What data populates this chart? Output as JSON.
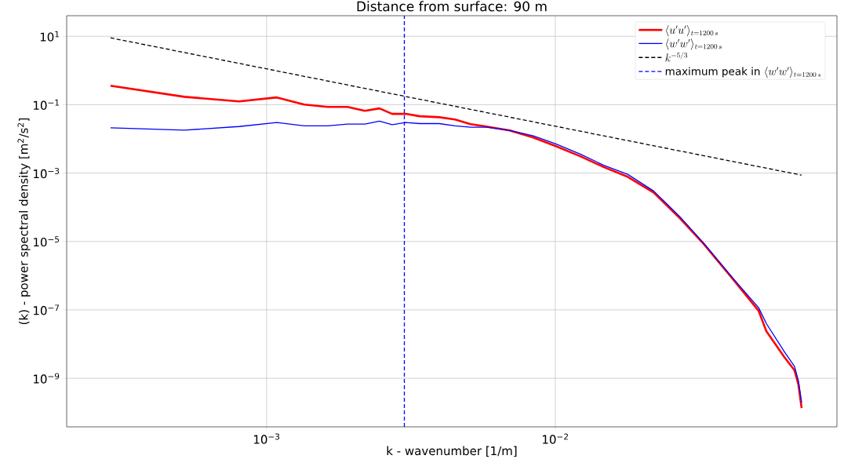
{
  "chart_data": {
    "type": "line",
    "title": "Distance from surface: 90 m",
    "xlabel": "k - wavenumber [1/m]",
    "ylabel": "(k) - power spectral density [m$^{2}$/s$^{2}$]",
    "log": "xy",
    "grid": true,
    "legend": "top right",
    "xlim": [
      0.000203,
      0.0945
    ],
    "ylim": [
      3.8e-11,
      40
    ],
    "xticks": [
      {
        "value": 0.001,
        "label": "10$^{−3}$"
      },
      {
        "value": 0.01,
        "label": "10$^{−2}$"
      }
    ],
    "yticks": [
      {
        "value": 10,
        "label": "10$^{1}$"
      },
      {
        "value": 0.1,
        "label": "10$^{−1}$"
      },
      {
        "value": 0.001,
        "label": "10$^{−3}$"
      },
      {
        "value": 1e-05,
        "label": "10$^{−5}$"
      },
      {
        "value": 1e-07,
        "label": "10$^{−7}$"
      },
      {
        "value": 1e-09,
        "label": "10$^{−9}$"
      }
    ],
    "x": [
      0.000288,
      0.000519,
      0.000803,
      0.001085,
      0.00135,
      0.00163,
      0.001905,
      0.00219,
      0.00246,
      0.00272,
      0.00303,
      0.00339,
      0.00396,
      0.00449,
      0.00509,
      0.00577,
      0.00695,
      0.00839,
      0.01,
      0.0122,
      0.0147,
      0.0178,
      0.0219,
      0.027,
      0.0327,
      0.0409,
      0.0506,
      0.0538,
      0.0621,
      0.0674,
      0.0695,
      0.0713
    ],
    "series": [
      {
        "name": "\\langle u'u'\\rangle_{t=1200\\,s}",
        "color": "#ff0000",
        "values": [
          0.36,
          0.17,
          0.125,
          0.163,
          0.101,
          0.086,
          0.086,
          0.066,
          0.078,
          0.054,
          0.054,
          0.046,
          0.043,
          0.037,
          0.027,
          0.023,
          0.0177,
          0.011,
          0.0062,
          0.0031,
          0.0015,
          0.00078,
          0.00027,
          4.8e-05,
          8.4e-06,
          8.6e-07,
          9.4e-08,
          2.4e-08,
          4.2e-09,
          1.7e-09,
          6.6e-10,
          1.35e-10
        ]
      },
      {
        "name": "\\langle w'w'\\rangle_{t=1200\\,s}",
        "color": "#0000ff",
        "values": [
          0.021,
          0.018,
          0.023,
          0.03,
          0.024,
          0.024,
          0.027,
          0.027,
          0.033,
          0.026,
          0.03,
          0.028,
          0.028,
          0.024,
          0.022,
          0.022,
          0.0177,
          0.0122,
          0.0072,
          0.0036,
          0.0017,
          0.00092,
          0.0003,
          5.3e-05,
          8.8e-06,
          9.1e-07,
          1.16e-07,
          4e-08,
          6e-09,
          2.2e-09,
          8.5e-10,
          1.95e-10
        ]
      },
      {
        "name": "k^{-5/3}",
        "color": "#000000",
        "line_style": "dashed",
        "x": [
          0.000288,
          0.0713
        ],
        "values": [
          9.0,
          0.00087
        ]
      },
      {
        "name": "\\mbox{maximum peak in }\\langle w'w'\\rangle_{t=1200\\,s}",
        "color": "#0000ff",
        "line_style": "dashed",
        "x": [
          0.003,
          0.003
        ],
        "values": [
          3.8e-11,
          40
        ]
      }
    ]
  }
}
